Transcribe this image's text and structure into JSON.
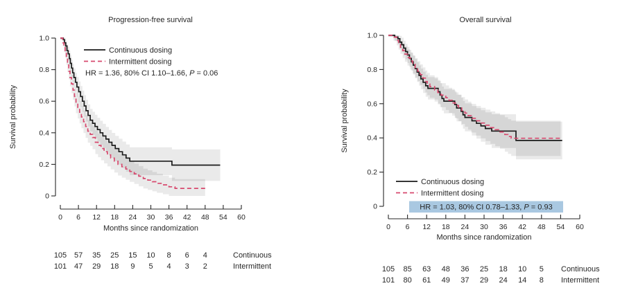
{
  "figure": {
    "background": "#ffffff",
    "text_color": "#262626",
    "band_color": "#000000",
    "band_opacity": 0.082
  },
  "chart_data": [
    {
      "type": "line",
      "variant": "kaplan-meier-step",
      "title": "Progression-free survival",
      "xlabel": "Months since randomization",
      "ylabel": "Survival probability",
      "xlim": [
        0,
        60
      ],
      "ylim": [
        0,
        1
      ],
      "xticks": [
        0,
        6,
        12,
        18,
        24,
        30,
        36,
        42,
        48,
        54,
        60
      ],
      "yticks": [
        0,
        0.2,
        0.4,
        0.6,
        0.8,
        1
      ],
      "grid": false,
      "legend_position": "upper-right-inside",
      "annotation": {
        "prefix": "HR = 1.36, 80% CI 1.10–1.66, ",
        "p_label": "P",
        "suffix": " = 0.06",
        "highlight": false,
        "highlight_color": ""
      },
      "series": [
        {
          "name": "Continuous dosing",
          "color": "#1a1a1a",
          "dash": "solid",
          "points": [
            [
              0,
              1.0
            ],
            [
              1,
              0.99
            ],
            [
              1.4,
              0.97
            ],
            [
              1.8,
              0.95
            ],
            [
              2.2,
              0.92
            ],
            [
              2.6,
              0.9
            ],
            [
              3,
              0.87
            ],
            [
              3.3,
              0.84
            ],
            [
              3.7,
              0.81
            ],
            [
              4.1,
              0.78
            ],
            [
              4.5,
              0.75
            ],
            [
              5,
              0.72
            ],
            [
              5.5,
              0.69
            ],
            [
              6.1,
              0.66
            ],
            [
              6.7,
              0.63
            ],
            [
              7.3,
              0.6
            ],
            [
              7.9,
              0.57
            ],
            [
              8.5,
              0.54
            ],
            [
              9.2,
              0.51
            ],
            [
              9.9,
              0.48
            ],
            [
              10.7,
              0.46
            ],
            [
              11.5,
              0.44
            ],
            [
              12.3,
              0.42
            ],
            [
              13.2,
              0.4
            ],
            [
              14.1,
              0.38
            ],
            [
              15.1,
              0.36
            ],
            [
              16.1,
              0.34
            ],
            [
              17.1,
              0.32
            ],
            [
              18.2,
              0.3
            ],
            [
              19.4,
              0.28
            ],
            [
              20.6,
              0.26
            ],
            [
              21.8,
              0.24
            ],
            [
              23,
              0.22
            ],
            [
              37,
              0.195
            ],
            [
              53,
              0.195
            ]
          ],
          "ci_margin": [
            [
              0,
              0.01
            ],
            [
              3,
              0.05
            ],
            [
              6,
              0.065
            ],
            [
              12,
              0.075
            ],
            [
              18,
              0.08
            ],
            [
              24,
              0.09
            ],
            [
              36,
              0.1
            ],
            [
              53,
              0.105
            ]
          ]
        },
        {
          "name": "Intermittent dosing",
          "color": "#d7486d",
          "dash": "dashed",
          "points": [
            [
              0,
              1.0
            ],
            [
              0.8,
              0.97
            ],
            [
              1.2,
              0.94
            ],
            [
              1.6,
              0.91
            ],
            [
              2,
              0.87
            ],
            [
              2.4,
              0.83
            ],
            [
              2.8,
              0.79
            ],
            [
              3.2,
              0.75
            ],
            [
              3.7,
              0.71
            ],
            [
              4.2,
              0.67
            ],
            [
              4.7,
              0.63
            ],
            [
              5.2,
              0.59
            ],
            [
              5.8,
              0.56
            ],
            [
              6.4,
              0.53
            ],
            [
              7,
              0.5
            ],
            [
              7.7,
              0.47
            ],
            [
              8.4,
              0.44
            ],
            [
              9.1,
              0.41
            ],
            [
              9.9,
              0.39
            ],
            [
              10.7,
              0.37
            ],
            [
              11.6,
              0.34
            ],
            [
              12.5,
              0.32
            ],
            [
              13.5,
              0.3
            ],
            [
              14.5,
              0.28
            ],
            [
              15.6,
              0.26
            ],
            [
              16.7,
              0.24
            ],
            [
              17.9,
              0.22
            ],
            [
              19.1,
              0.2
            ],
            [
              20.4,
              0.185
            ],
            [
              21.7,
              0.17
            ],
            [
              23,
              0.155
            ],
            [
              24.5,
              0.14
            ],
            [
              26,
              0.125
            ],
            [
              27.5,
              0.11
            ],
            [
              29,
              0.1
            ],
            [
              30.5,
              0.09
            ],
            [
              32,
              0.08
            ],
            [
              34,
              0.07
            ],
            [
              36,
              0.058
            ],
            [
              38,
              0.048
            ],
            [
              48,
              0.048
            ]
          ],
          "ci_margin": [
            [
              0,
              0.01
            ],
            [
              3,
              0.055
            ],
            [
              6,
              0.07
            ],
            [
              12,
              0.075
            ],
            [
              18,
              0.072
            ],
            [
              24,
              0.065
            ],
            [
              36,
              0.058
            ],
            [
              48,
              0.058
            ]
          ]
        }
      ],
      "at_risk": {
        "months": [
          0,
          6,
          12,
          18,
          24,
          30,
          36,
          42,
          48
        ],
        "rows": [
          {
            "label": "Continuous",
            "values": [
              105,
              57,
              35,
              25,
              15,
              10,
              8,
              6,
              4
            ]
          },
          {
            "label": "Intermittent",
            "values": [
              101,
              47,
              29,
              18,
              9,
              5,
              4,
              3,
              2
            ]
          }
        ]
      }
    },
    {
      "type": "line",
      "variant": "kaplan-meier-step",
      "title": "Overall survival",
      "xlabel": "Months since randomization",
      "ylabel": "Survival probability",
      "xlim": [
        0,
        60
      ],
      "ylim": [
        0,
        1
      ],
      "xticks": [
        0,
        6,
        12,
        18,
        24,
        30,
        36,
        42,
        48,
        54,
        60
      ],
      "yticks": [
        0,
        0.2,
        0.4,
        0.6,
        0.8,
        1
      ],
      "grid": false,
      "legend_position": "lower-left-inside",
      "annotation": {
        "prefix": "HR = 1.03, 80% CI 0.78–1.33, ",
        "p_label": "P",
        "suffix": " = 0.93",
        "highlight": true,
        "highlight_color": "#a9c8e1"
      },
      "series": [
        {
          "name": "Continuous dosing",
          "color": "#1a1a1a",
          "dash": "solid",
          "points": [
            [
              0,
              1.0
            ],
            [
              2,
              0.99
            ],
            [
              3,
              0.98
            ],
            [
              3.6,
              0.96
            ],
            [
              4.2,
              0.945
            ],
            [
              4.8,
              0.925
            ],
            [
              5.4,
              0.905
            ],
            [
              6,
              0.885
            ],
            [
              6.6,
              0.865
            ],
            [
              7.2,
              0.845
            ],
            [
              7.8,
              0.825
            ],
            [
              8.4,
              0.805
            ],
            [
              9,
              0.785
            ],
            [
              9.6,
              0.765
            ],
            [
              10.2,
              0.745
            ],
            [
              10.9,
              0.725
            ],
            [
              11.7,
              0.705
            ],
            [
              12.4,
              0.69
            ],
            [
              15.6,
              0.67
            ],
            [
              16.2,
              0.65
            ],
            [
              16.8,
              0.63
            ],
            [
              17.4,
              0.615
            ],
            [
              20.8,
              0.595
            ],
            [
              21.4,
              0.575
            ],
            [
              22.8,
              0.555
            ],
            [
              23.4,
              0.535
            ],
            [
              24,
              0.52
            ],
            [
              26.2,
              0.5
            ],
            [
              27.6,
              0.485
            ],
            [
              29,
              0.47
            ],
            [
              30.4,
              0.455
            ],
            [
              32.4,
              0.44
            ],
            [
              40,
              0.385
            ],
            [
              54.5,
              0.385
            ]
          ],
          "ci_margin": [
            [
              0,
              0.008
            ],
            [
              4,
              0.04
            ],
            [
              8,
              0.055
            ],
            [
              12,
              0.065
            ],
            [
              18,
              0.072
            ],
            [
              24,
              0.082
            ],
            [
              32,
              0.098
            ],
            [
              40,
              0.11
            ],
            [
              54.5,
              0.11
            ]
          ]
        },
        {
          "name": "Intermittent dosing",
          "color": "#d7486d",
          "dash": "dashed",
          "points": [
            [
              0,
              1.0
            ],
            [
              1.6,
              0.99
            ],
            [
              2.6,
              0.97
            ],
            [
              3.2,
              0.95
            ],
            [
              3.8,
              0.93
            ],
            [
              4.5,
              0.91
            ],
            [
              5.2,
              0.89
            ],
            [
              6,
              0.87
            ],
            [
              6.8,
              0.85
            ],
            [
              7.6,
              0.83
            ],
            [
              8.4,
              0.81
            ],
            [
              9.2,
              0.79
            ],
            [
              10,
              0.77
            ],
            [
              10.8,
              0.75
            ],
            [
              11.6,
              0.73
            ],
            [
              12.2,
              0.715
            ],
            [
              13,
              0.7
            ],
            [
              14.5,
              0.68
            ],
            [
              15.5,
              0.665
            ],
            [
              16.5,
              0.65
            ],
            [
              18,
              0.635
            ],
            [
              19,
              0.62
            ],
            [
              20,
              0.605
            ],
            [
              21,
              0.59
            ],
            [
              22,
              0.575
            ],
            [
              23,
              0.56
            ],
            [
              24,
              0.545
            ],
            [
              25,
              0.53
            ],
            [
              26,
              0.515
            ],
            [
              27.5,
              0.5
            ],
            [
              29,
              0.487
            ],
            [
              30.5,
              0.474
            ],
            [
              32,
              0.46
            ],
            [
              33.5,
              0.448
            ],
            [
              35,
              0.435
            ],
            [
              36.5,
              0.42
            ],
            [
              37.5,
              0.408
            ],
            [
              38.5,
              0.398
            ],
            [
              54,
              0.398
            ]
          ],
          "ci_margin": [
            [
              0,
              0.008
            ],
            [
              4,
              0.04
            ],
            [
              8,
              0.055
            ],
            [
              12,
              0.065
            ],
            [
              18,
              0.072
            ],
            [
              24,
              0.08
            ],
            [
              32,
              0.095
            ],
            [
              40,
              0.105
            ],
            [
              54,
              0.11
            ]
          ]
        }
      ],
      "at_risk": {
        "months": [
          0,
          6,
          12,
          18,
          24,
          30,
          36,
          42,
          48
        ],
        "rows": [
          {
            "label": "Continuous",
            "values": [
              105,
              85,
              63,
              48,
              36,
              25,
              18,
              10,
              5
            ]
          },
          {
            "label": "Intermittent",
            "values": [
              101,
              80,
              61,
              49,
              37,
              29,
              24,
              14,
              8
            ]
          }
        ]
      }
    }
  ]
}
